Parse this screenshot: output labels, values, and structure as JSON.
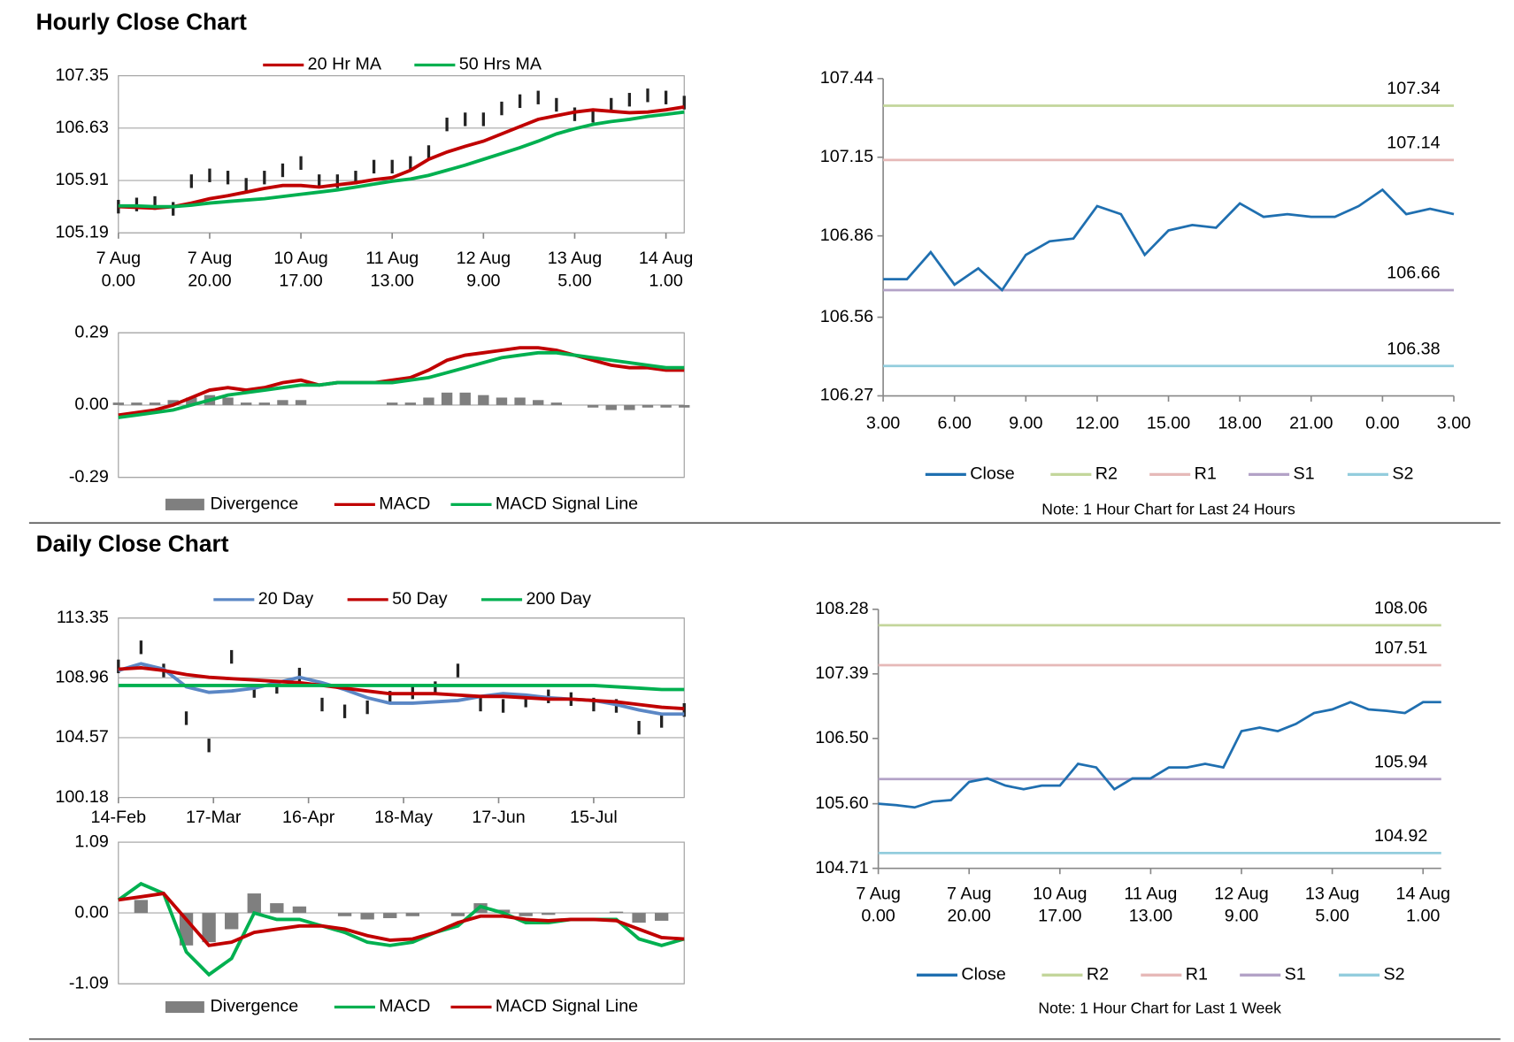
{
  "headings": [
    "Hourly Close Chart",
    "Daily Close Chart"
  ],
  "chart_data": [
    {
      "type": "candlestick",
      "grid": true,
      "x": [
        0,
        4,
        8,
        12,
        16,
        20,
        24,
        28,
        32,
        36,
        40,
        44,
        48,
        52,
        56,
        60,
        64,
        68,
        72,
        76,
        80,
        84,
        88,
        92,
        96,
        100,
        104,
        108,
        112,
        116,
        120,
        124
      ],
      "close": [
        105.55,
        105.58,
        105.6,
        105.52,
        105.9,
        105.98,
        105.95,
        105.85,
        105.95,
        106.05,
        106.15,
        105.9,
        105.9,
        105.95,
        106.1,
        106.1,
        106.15,
        106.3,
        106.68,
        106.75,
        106.75,
        106.9,
        107.0,
        107.05,
        106.95,
        106.82,
        106.8,
        106.95,
        107.02,
        107.08,
        107.05,
        106.98
      ],
      "series": [
        {
          "name": "20 Hr MA",
          "color": "#c00000",
          "values": [
            105.55,
            105.54,
            105.53,
            105.55,
            105.6,
            105.66,
            105.7,
            105.75,
            105.8,
            105.84,
            105.84,
            105.82,
            105.85,
            105.88,
            105.92,
            105.95,
            106.05,
            106.2,
            106.3,
            106.38,
            106.45,
            106.55,
            106.65,
            106.75,
            106.8,
            106.85,
            106.88,
            106.86,
            106.84,
            106.85,
            106.88,
            106.92
          ]
        },
        {
          "name": "50 Hrs MA",
          "color": "#00b050",
          "values": [
            105.56,
            105.56,
            105.55,
            105.55,
            105.57,
            105.6,
            105.62,
            105.64,
            105.66,
            105.69,
            105.72,
            105.75,
            105.78,
            105.82,
            105.86,
            105.9,
            105.93,
            105.98,
            106.05,
            106.12,
            106.2,
            106.28,
            106.36,
            106.45,
            106.55,
            106.62,
            106.68,
            106.72,
            106.75,
            106.79,
            106.82,
            106.85
          ]
        }
      ],
      "xlim": [
        0,
        124
      ],
      "xticks": [
        {
          "value": 0,
          "label": "7 Aug",
          "sublabel": "0.00"
        },
        {
          "value": 20,
          "label": "7 Aug",
          "sublabel": "20.00"
        },
        {
          "value": 40,
          "label": "10 Aug",
          "sublabel": "17.00"
        },
        {
          "value": 60,
          "label": "11 Aug",
          "sublabel": "13.00"
        },
        {
          "value": 80,
          "label": "12 Aug",
          "sublabel": "9.00"
        },
        {
          "value": 100,
          "label": "13 Aug",
          "sublabel": "5.00"
        },
        {
          "value": 120,
          "label": "14 Aug",
          "sublabel": "1.00"
        }
      ],
      "ylim": [
        105.19,
        107.35
      ],
      "yticks": [
        105.19,
        105.91,
        106.63,
        107.35
      ]
    },
    {
      "type": "macd",
      "grid": true,
      "x": [
        0,
        4,
        8,
        12,
        16,
        20,
        24,
        28,
        32,
        36,
        40,
        44,
        48,
        52,
        56,
        60,
        64,
        68,
        72,
        76,
        80,
        84,
        88,
        92,
        96,
        100,
        104,
        108,
        112,
        116,
        120,
        124
      ],
      "series": [
        {
          "name": "Divergence",
          "color": "#7f7f7f",
          "style": "bar",
          "values": [
            0.01,
            0.01,
            0.01,
            0.02,
            0.03,
            0.04,
            0.03,
            0.01,
            0.01,
            0.02,
            0.02,
            0.0,
            0.0,
            0.0,
            0.0,
            0.01,
            0.01,
            0.03,
            0.05,
            0.05,
            0.04,
            0.03,
            0.03,
            0.02,
            0.01,
            0.0,
            -0.01,
            -0.02,
            -0.02,
            -0.01,
            -0.01,
            -0.01
          ]
        },
        {
          "name": "MACD",
          "color": "#c00000",
          "values": [
            -0.04,
            -0.03,
            -0.02,
            0.0,
            0.03,
            0.06,
            0.07,
            0.06,
            0.07,
            0.09,
            0.1,
            0.08,
            0.09,
            0.09,
            0.09,
            0.1,
            0.11,
            0.14,
            0.18,
            0.2,
            0.21,
            0.22,
            0.23,
            0.23,
            0.22,
            0.2,
            0.18,
            0.16,
            0.15,
            0.15,
            0.14,
            0.14
          ]
        },
        {
          "name": "MACD Signal Line",
          "color": "#00b050",
          "values": [
            -0.05,
            -0.04,
            -0.03,
            -0.02,
            0.0,
            0.02,
            0.04,
            0.05,
            0.06,
            0.07,
            0.08,
            0.08,
            0.09,
            0.09,
            0.09,
            0.09,
            0.1,
            0.11,
            0.13,
            0.15,
            0.17,
            0.19,
            0.2,
            0.21,
            0.21,
            0.2,
            0.19,
            0.18,
            0.17,
            0.16,
            0.15,
            0.15
          ]
        }
      ],
      "xlim": [
        0,
        124
      ],
      "ylim": [
        -0.29,
        0.29
      ],
      "yticks": [
        -0.29,
        {
          "value": 0,
          "label": "0.00"
        },
        0.29
      ]
    },
    {
      "type": "line",
      "grid": false,
      "note": "Note: 1 Hour Chart for Last 24 Hours",
      "x": [
        0,
        1,
        2,
        3,
        4,
        5,
        6,
        7,
        8,
        9,
        10,
        11,
        12,
        13,
        14,
        15,
        16,
        17,
        18,
        19,
        20,
        21,
        22,
        23,
        24
      ],
      "series": [
        {
          "name": "Close",
          "color": "#1f6fb0",
          "values": [
            106.7,
            106.7,
            106.8,
            106.68,
            106.74,
            106.66,
            106.79,
            106.84,
            106.85,
            106.97,
            106.94,
            106.79,
            106.88,
            106.9,
            106.89,
            106.98,
            106.93,
            106.94,
            106.93,
            106.93,
            106.97,
            107.03,
            106.94,
            106.96,
            106.94
          ]
        },
        {
          "name": "R2",
          "color": "#c3d69b",
          "value": 107.34
        },
        {
          "name": "R1",
          "color": "#e6b9b8",
          "value": 107.14
        },
        {
          "name": "S1",
          "color": "#b3a2c7",
          "value": 106.66
        },
        {
          "name": "S2",
          "color": "#93cddd",
          "value": 106.38
        }
      ],
      "xlim": [
        0,
        24
      ],
      "xticks": [
        {
          "value": 0,
          "label": "3.00"
        },
        {
          "value": 3,
          "label": "6.00"
        },
        {
          "value": 6,
          "label": "9.00"
        },
        {
          "value": 9,
          "label": "12.00"
        },
        {
          "value": 12,
          "label": "15.00"
        },
        {
          "value": 15,
          "label": "18.00"
        },
        {
          "value": 18,
          "label": "21.00"
        },
        {
          "value": 21,
          "label": "0.00"
        },
        {
          "value": 24,
          "label": "3.00"
        }
      ],
      "ylim": [
        106.27,
        107.44
      ],
      "yticks": [
        106.27,
        106.56,
        106.86,
        107.15,
        107.44
      ]
    },
    {
      "type": "candlestick",
      "grid": true,
      "x": [
        0,
        5,
        10,
        15,
        20,
        25,
        30,
        35,
        40,
        45,
        50,
        55,
        60,
        65,
        70,
        75,
        80,
        85,
        90,
        95,
        100,
        105,
        110,
        115,
        120,
        125
      ],
      "close": [
        109.8,
        111.2,
        109.5,
        106.0,
        104.0,
        110.5,
        108.0,
        108.3,
        109.2,
        107.0,
        106.5,
        106.8,
        107.5,
        107.9,
        108.2,
        109.5,
        107.0,
        106.9,
        107.3,
        107.6,
        107.4,
        107.0,
        106.9,
        105.3,
        105.8,
        106.6
      ],
      "series": [
        {
          "name": "20 Day",
          "color": "#5b87c5",
          "values": [
            109.5,
            110.0,
            109.6,
            108.3,
            107.9,
            108.0,
            108.2,
            108.6,
            109.0,
            108.6,
            108.1,
            107.5,
            107.1,
            107.1,
            107.2,
            107.3,
            107.6,
            107.8,
            107.7,
            107.5,
            107.4,
            107.3,
            107.0,
            106.6,
            106.3,
            106.3
          ]
        },
        {
          "name": "50 Day",
          "color": "#c00000",
          "values": [
            109.6,
            109.7,
            109.5,
            109.2,
            109.0,
            108.9,
            108.8,
            108.7,
            108.6,
            108.4,
            108.2,
            108.0,
            107.8,
            107.8,
            107.8,
            107.7,
            107.6,
            107.6,
            107.5,
            107.4,
            107.4,
            107.3,
            107.2,
            107.0,
            106.8,
            106.7
          ]
        },
        {
          "name": "200 Day",
          "color": "#00b050",
          "values": [
            108.4,
            108.4,
            108.4,
            108.4,
            108.4,
            108.4,
            108.4,
            108.4,
            108.4,
            108.4,
            108.4,
            108.4,
            108.4,
            108.4,
            108.4,
            108.4,
            108.4,
            108.4,
            108.4,
            108.4,
            108.4,
            108.4,
            108.3,
            108.2,
            108.1,
            108.1
          ]
        }
      ],
      "xlim": [
        0,
        125
      ],
      "xticks": [
        {
          "value": 0,
          "label": "14-Feb"
        },
        {
          "value": 21,
          "label": "17-Mar"
        },
        {
          "value": 42,
          "label": "16-Apr"
        },
        {
          "value": 63,
          "label": "18-May"
        },
        {
          "value": 84,
          "label": "17-Jun"
        },
        {
          "value": 105,
          "label": "15-Jul"
        }
      ],
      "ylim": [
        100.18,
        113.35
      ],
      "yticks": [
        100.18,
        104.57,
        108.96,
        113.35
      ]
    },
    {
      "type": "macd",
      "grid": true,
      "x": [
        0,
        5,
        10,
        15,
        20,
        25,
        30,
        35,
        40,
        45,
        50,
        55,
        60,
        65,
        70,
        75,
        80,
        85,
        90,
        95,
        100,
        105,
        110,
        115,
        120,
        125
      ],
      "series": [
        {
          "name": "Divergence",
          "color": "#7f7f7f",
          "style": "bar",
          "values": [
            0.0,
            0.2,
            0.0,
            -0.5,
            -0.45,
            -0.25,
            0.3,
            0.15,
            0.1,
            0.0,
            -0.05,
            -0.1,
            -0.08,
            -0.05,
            0.0,
            -0.05,
            0.15,
            0.05,
            -0.05,
            -0.03,
            0.0,
            0.0,
            0.02,
            -0.15,
            -0.12,
            0.0
          ]
        },
        {
          "name": "MACD",
          "color": "#00b050",
          "values": [
            0.2,
            0.45,
            0.3,
            -0.6,
            -0.95,
            -0.7,
            0.0,
            -0.1,
            -0.1,
            -0.2,
            -0.3,
            -0.45,
            -0.5,
            -0.45,
            -0.3,
            -0.2,
            0.1,
            0.0,
            -0.15,
            -0.15,
            -0.1,
            -0.1,
            -0.1,
            -0.4,
            -0.5,
            -0.4
          ]
        },
        {
          "name": "MACD Signal Line",
          "color": "#c00000",
          "values": [
            0.2,
            0.25,
            0.3,
            -0.1,
            -0.5,
            -0.45,
            -0.3,
            -0.25,
            -0.2,
            -0.2,
            -0.25,
            -0.35,
            -0.42,
            -0.4,
            -0.3,
            -0.15,
            -0.05,
            -0.05,
            -0.1,
            -0.12,
            -0.1,
            -0.1,
            -0.12,
            -0.25,
            -0.38,
            -0.4
          ]
        }
      ],
      "xlim": [
        0,
        125
      ],
      "ylim": [
        -1.09,
        1.09
      ],
      "yticks": [
        -1.09,
        {
          "value": 0,
          "label": "0.00"
        },
        1.09
      ]
    },
    {
      "type": "line",
      "grid": false,
      "note": "Note: 1 Hour Chart for Last 1 Week",
      "x": [
        0,
        4,
        8,
        12,
        16,
        20,
        24,
        28,
        32,
        36,
        40,
        44,
        48,
        52,
        56,
        60,
        64,
        68,
        72,
        76,
        80,
        84,
        88,
        92,
        96,
        100,
        104,
        108,
        112,
        116,
        120,
        124
      ],
      "series": [
        {
          "name": "Close",
          "color": "#1f6fb0",
          "values": [
            105.6,
            105.58,
            105.55,
            105.63,
            105.65,
            105.9,
            105.95,
            105.85,
            105.8,
            105.85,
            105.85,
            106.15,
            106.1,
            105.8,
            105.95,
            105.95,
            106.1,
            106.1,
            106.15,
            106.1,
            106.6,
            106.65,
            106.6,
            106.7,
            106.85,
            106.9,
            107.0,
            106.9,
            106.88,
            106.85,
            107.0,
            107.0
          ]
        },
        {
          "name": "R2",
          "color": "#c3d69b",
          "value": 108.06
        },
        {
          "name": "R1",
          "color": "#e6b9b8",
          "value": 107.51
        },
        {
          "name": "S1",
          "color": "#b3a2c7",
          "value": 105.94
        },
        {
          "name": "S2",
          "color": "#93cddd",
          "value": 104.92
        }
      ],
      "xlim": [
        0,
        124
      ],
      "xticks": [
        {
          "value": 0,
          "label": "7 Aug",
          "sublabel": "0.00"
        },
        {
          "value": 20,
          "label": "7 Aug",
          "sublabel": "20.00"
        },
        {
          "value": 40,
          "label": "10 Aug",
          "sublabel": "17.00"
        },
        {
          "value": 60,
          "label": "11 Aug",
          "sublabel": "13.00"
        },
        {
          "value": 80,
          "label": "12 Aug",
          "sublabel": "9.00"
        },
        {
          "value": 100,
          "label": "13 Aug",
          "sublabel": "5.00"
        },
        {
          "value": 120,
          "label": "14 Aug",
          "sublabel": "1.00"
        }
      ],
      "ylim": [
        104.71,
        108.28
      ],
      "yticks": [
        104.71,
        {
          "value": 105.6,
          "label": "105.60"
        },
        {
          "value": 106.5,
          "label": "106.50"
        },
        107.39,
        108.28
      ]
    }
  ]
}
